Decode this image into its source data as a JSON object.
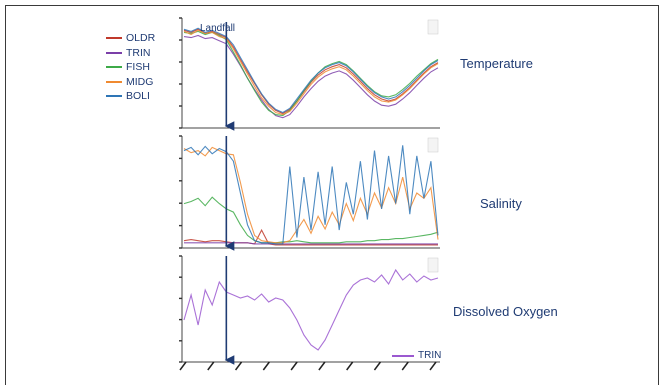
{
  "legend": {
    "items": [
      {
        "label": "OLDR",
        "color": "#c0392b"
      },
      {
        "label": "TRIN",
        "color": "#7b3fa8"
      },
      {
        "label": "FISH",
        "color": "#3daa48"
      },
      {
        "label": "MIDG",
        "color": "#f08a30"
      },
      {
        "label": "BOLI",
        "color": "#2e75b6"
      }
    ]
  },
  "annotation": {
    "landfall": "Landfall"
  },
  "panels": {
    "temperature": "Temperature",
    "salinity": "Salinity",
    "oxygen": "Dissolved Oxygen"
  },
  "oxygen_legend": {
    "label": "TRIN",
    "color": "#9b59d0"
  },
  "chart_data": [
    {
      "type": "line",
      "title": "Temperature",
      "landfall_index": 6,
      "series": [
        {
          "name": "OLDR",
          "color": "#c0392b",
          "values": [
            9.2,
            9.0,
            9.3,
            8.9,
            9.1,
            8.8,
            8.5,
            7.6,
            6.4,
            5.2,
            4.1,
            3.0,
            2.1,
            1.5,
            1.2,
            1.6,
            2.4,
            3.3,
            4.2,
            4.9,
            5.4,
            5.7,
            5.9,
            5.6,
            5.0,
            4.3,
            3.6,
            3.0,
            2.6,
            2.4,
            2.6,
            3.1,
            3.7,
            4.4,
            5.1,
            5.7,
            6.1
          ]
        },
        {
          "name": "TRIN",
          "color": "#7b3fa8",
          "values": [
            8.6,
            8.5,
            8.7,
            8.4,
            8.5,
            8.2,
            7.9,
            6.9,
            5.8,
            4.6,
            3.5,
            2.5,
            1.6,
            1.0,
            0.8,
            1.1,
            1.9,
            2.8,
            3.6,
            4.3,
            4.8,
            5.1,
            5.3,
            5.0,
            4.4,
            3.7,
            3.0,
            2.4,
            2.0,
            1.9,
            2.1,
            2.6,
            3.2,
            3.9,
            4.6,
            5.2,
            5.6
          ]
        },
        {
          "name": "FISH",
          "color": "#3daa48",
          "values": [
            9.0,
            8.9,
            9.1,
            8.8,
            9.0,
            8.7,
            8.3,
            7.1,
            5.9,
            4.6,
            3.4,
            2.3,
            1.5,
            1.1,
            1.0,
            1.5,
            2.4,
            3.4,
            4.3,
            5.1,
            5.7,
            6.0,
            6.2,
            5.9,
            5.3,
            4.6,
            3.9,
            3.3,
            2.9,
            2.8,
            3.0,
            3.5,
            4.1,
            4.8,
            5.4,
            6.0,
            6.4
          ]
        },
        {
          "name": "MIDG",
          "color": "#f08a30",
          "values": [
            9.1,
            8.8,
            9.2,
            8.9,
            9.0,
            8.6,
            8.4,
            7.4,
            6.2,
            5.0,
            3.8,
            2.7,
            1.9,
            1.3,
            1.1,
            1.4,
            2.2,
            3.1,
            4.0,
            4.7,
            5.2,
            5.5,
            5.7,
            5.4,
            4.8,
            4.1,
            3.4,
            2.8,
            2.4,
            2.3,
            2.5,
            3.0,
            3.6,
            4.3,
            5.0,
            5.6,
            6.0
          ]
        },
        {
          "name": "BOLI",
          "color": "#2e75b6",
          "values": [
            9.3,
            9.1,
            9.4,
            9.0,
            9.2,
            8.9,
            8.6,
            7.8,
            6.6,
            5.4,
            4.2,
            3.1,
            2.2,
            1.6,
            1.3,
            1.7,
            2.6,
            3.5,
            4.4,
            5.1,
            5.6,
            5.9,
            6.1,
            5.8,
            5.2,
            4.5,
            3.8,
            3.2,
            2.8,
            2.6,
            2.8,
            3.3,
            3.9,
            4.6,
            5.3,
            5.9,
            6.3
          ]
        }
      ]
    },
    {
      "type": "line",
      "title": "Salinity",
      "landfall_index": 6,
      "series": [
        {
          "name": "OLDR",
          "color": "#c0392b",
          "values": [
            0.5,
            0.6,
            0.5,
            0.4,
            0.5,
            0.5,
            0.4,
            0.3,
            0.3,
            0.3,
            0.2,
            1.5,
            0.2,
            0.1,
            0.1,
            0.1,
            0.1,
            0.1,
            0.1,
            0.1,
            0.1,
            0.1,
            0.1,
            0.1,
            0.1,
            0.1,
            0.1,
            0.1,
            0.1,
            0.1,
            0.1,
            0.1,
            0.1,
            0.1,
            0.1,
            0.1,
            0.1
          ]
        },
        {
          "name": "TRIN",
          "color": "#7b3fa8",
          "values": [
            0.3,
            0.3,
            0.3,
            0.3,
            0.3,
            0.3,
            0.3,
            0.3,
            0.3,
            0.3,
            0.2,
            0.2,
            0.2,
            0.2,
            0.2,
            0.2,
            0.2,
            0.2,
            0.2,
            0.2,
            0.2,
            0.2,
            0.2,
            0.2,
            0.2,
            0.2,
            0.2,
            0.2,
            0.2,
            0.2,
            0.2,
            0.2,
            0.2,
            0.2,
            0.2,
            0.2,
            0.2
          ]
        },
        {
          "name": "FISH",
          "color": "#3daa48",
          "values": [
            4.0,
            4.2,
            4.5,
            3.8,
            4.6,
            4.0,
            3.5,
            3.2,
            2.0,
            1.0,
            0.5,
            0.3,
            0.3,
            0.3,
            0.4,
            0.4,
            0.5,
            0.4,
            0.3,
            0.3,
            0.3,
            0.3,
            0.3,
            0.4,
            0.4,
            0.4,
            0.5,
            0.5,
            0.6,
            0.6,
            0.7,
            0.7,
            0.8,
            0.9,
            1.0,
            1.1,
            1.3
          ]
        },
        {
          "name": "MIDG",
          "color": "#f08a30",
          "values": [
            9.2,
            8.8,
            9.0,
            8.5,
            9.3,
            9.0,
            8.7,
            8.6,
            6.0,
            3.0,
            1.0,
            0.5,
            0.4,
            0.3,
            0.3,
            0.5,
            1.5,
            2.5,
            1.2,
            2.8,
            1.6,
            3.2,
            2.0,
            4.0,
            2.4,
            4.5,
            3.0,
            5.0,
            3.6,
            5.5,
            4.0,
            6.5,
            3.5,
            5.0,
            4.5,
            5.5,
            0.6
          ]
        },
        {
          "name": "BOLI",
          "color": "#2e75b6",
          "values": [
            9.0,
            9.3,
            8.6,
            9.4,
            8.7,
            9.2,
            8.9,
            8.0,
            5.0,
            2.0,
            0.5,
            0.3,
            0.3,
            0.2,
            0.2,
            7.5,
            0.8,
            6.5,
            1.5,
            7.0,
            2.0,
            7.5,
            1.5,
            6.0,
            3.0,
            8.0,
            2.5,
            9.0,
            3.5,
            8.5,
            4.0,
            9.5,
            3.0,
            8.5,
            4.5,
            8.0,
            1.0
          ]
        }
      ]
    },
    {
      "type": "line",
      "title": "Dissolved Oxygen",
      "landfall_index": 6,
      "series": [
        {
          "name": "TRIN",
          "color": "#9b59d0",
          "values": [
            4.0,
            6.5,
            3.5,
            7.0,
            5.5,
            7.8,
            6.8,
            6.5,
            6.2,
            6.4,
            6.0,
            6.6,
            5.8,
            6.2,
            6.0,
            5.2,
            4.0,
            2.5,
            1.5,
            1.0,
            2.0,
            3.5,
            5.0,
            6.5,
            7.5,
            8.0,
            8.2,
            7.8,
            8.5,
            7.6,
            9.0,
            8.0,
            8.6,
            7.8,
            8.4,
            8.0,
            8.2
          ]
        }
      ]
    }
  ]
}
